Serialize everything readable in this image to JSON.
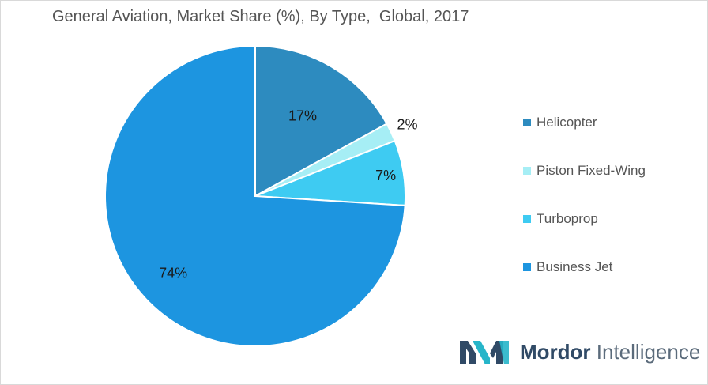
{
  "chart_data": {
    "type": "pie",
    "title": "General Aviation, Market Share (%), By Type,  Global, 2017",
    "start_angle_deg": 0,
    "direction": "clockwise",
    "slices": [
      {
        "name": "Helicopter",
        "value": 17,
        "label": "17%",
        "color": "#2d8bbf"
      },
      {
        "name": "Piston Fixed-Wing",
        "value": 2,
        "label": "2%",
        "color": "#a6eef5"
      },
      {
        "name": "Turboprop",
        "value": 7,
        "label": "7%",
        "color": "#3ecbf2"
      },
      {
        "name": "Business Jet",
        "value": 74,
        "label": "74%",
        "color": "#1d95e0"
      }
    ],
    "legend_position": "right"
  },
  "logo": {
    "brand_a": "Mordor",
    "brand_b": " Intelligence",
    "colors": {
      "dark": "#304a66",
      "teal": "#26b5c9"
    }
  }
}
